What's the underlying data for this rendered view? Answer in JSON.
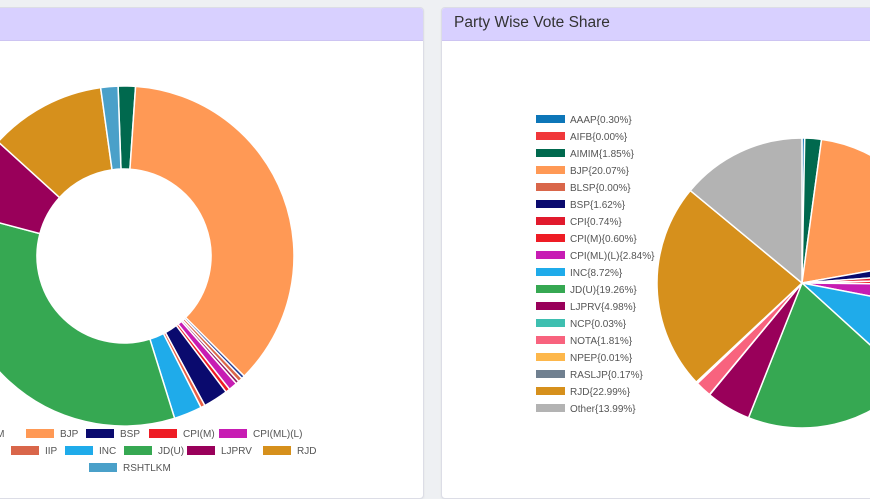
{
  "left_card": {
    "title": ""
  },
  "right_card": {
    "title": "Party Wise Vote Share"
  },
  "chart_data": [
    {
      "type": "pie",
      "variant": "doughnut",
      "title": "",
      "labels": [
        "AIMIM",
        "BJP",
        "BSP",
        "CPI(M)",
        "CPI(ML)(L)",
        "IIP",
        "INC",
        "JD(U)",
        "LJPRV",
        "RJD",
        "RSHTLKM"
      ],
      "legend_visible": [
        "MIM",
        "BJP",
        "BSP",
        "CPI(M)",
        "CPI(ML)(L)",
        "IIP",
        "INC",
        "JD(U)",
        "LJPRV",
        "RJD",
        "RSHTLKM"
      ],
      "slices": [
        {
          "label": "AIMIM",
          "value": 1.6,
          "color": "#00694e"
        },
        {
          "label": "BJP",
          "value": 35.5,
          "color": "#ff9955"
        },
        {
          "label": "",
          "value": 0.3,
          "color": "#1f3a93"
        },
        {
          "label": "IIP",
          "value": 0.4,
          "color": "#d9664a"
        },
        {
          "label": "",
          "value": 0.3,
          "color": "#8b1a60"
        },
        {
          "label": "CPI(ML)(L)",
          "value": 0.8,
          "color": "#c71cb3"
        },
        {
          "label": "CPI(M)",
          "value": 0.4,
          "color": "#ee1c25"
        },
        {
          "label": "BSP",
          "value": 2.3,
          "color": "#0a0a6e"
        },
        {
          "label": "",
          "value": 0.4,
          "color": "#e95f44"
        },
        {
          "label": "INC",
          "value": 2.6,
          "color": "#1fabea"
        },
        {
          "label": "JD(U)",
          "value": 33.1,
          "color": "#36a852"
        },
        {
          "label": "LJPRV",
          "value": 7.4,
          "color": "#99005a"
        },
        {
          "label": "RJD",
          "value": 10.8,
          "color": "#d6901c"
        },
        {
          "label": "RSHTLKM",
          "value": 1.6,
          "color": "#4aa0c9"
        }
      ]
    },
    {
      "type": "pie",
      "title": "Party Wise Vote Share",
      "legend": [
        "AAAP{0.30%}",
        "AIFB{0.00%}",
        "AIMIM{1.85%}",
        "BJP{20.07%}",
        "BLSP{0.00%}",
        "BSP{1.62%}",
        "CPI{0.74%}",
        "CPI(M){0.60%}",
        "CPI(ML)(L){2.84%}",
        "INC{8.72%}",
        "JD(U){19.26%}",
        "LJPRV{4.98%}",
        "NCP{0.03%}",
        "NOTA{1.81%}",
        "NPEP{0.01%}",
        "RASLJP{0.17%}",
        "RJD{22.99%}",
        "Other{13.99%}"
      ],
      "slices": [
        {
          "label": "AAAP",
          "value": 0.3,
          "color": "#0d76b8"
        },
        {
          "label": "AIFB",
          "value": 0.0,
          "color": "#f0373a"
        },
        {
          "label": "AIMIM",
          "value": 1.85,
          "color": "#00694e"
        },
        {
          "label": "BJP",
          "value": 20.07,
          "color": "#ff9955"
        },
        {
          "label": "BLSP",
          "value": 0.0,
          "color": "#d9664a"
        },
        {
          "label": "BSP",
          "value": 1.62,
          "color": "#0a0a6e"
        },
        {
          "label": "CPI",
          "value": 0.74,
          "color": "#e11a2d"
        },
        {
          "label": "CPI(M)",
          "value": 0.6,
          "color": "#ee1c25"
        },
        {
          "label": "CPI(ML)(L)",
          "value": 2.84,
          "color": "#c71cb3"
        },
        {
          "label": "INC",
          "value": 8.72,
          "color": "#1fabea"
        },
        {
          "label": "JD(U)",
          "value": 19.26,
          "color": "#36a852"
        },
        {
          "label": "LJPRV",
          "value": 4.98,
          "color": "#99005a"
        },
        {
          "label": "NCP",
          "value": 0.03,
          "color": "#3ebfb0"
        },
        {
          "label": "NOTA",
          "value": 1.81,
          "color": "#f8637e"
        },
        {
          "label": "NPEP",
          "value": 0.01,
          "color": "#fdb74b"
        },
        {
          "label": "RASLJP",
          "value": 0.17,
          "color": "#708090"
        },
        {
          "label": "RJD",
          "value": 22.99,
          "color": "#d6901c"
        },
        {
          "label": "Other",
          "value": 13.99,
          "color": "#b3b3b3"
        }
      ]
    }
  ]
}
